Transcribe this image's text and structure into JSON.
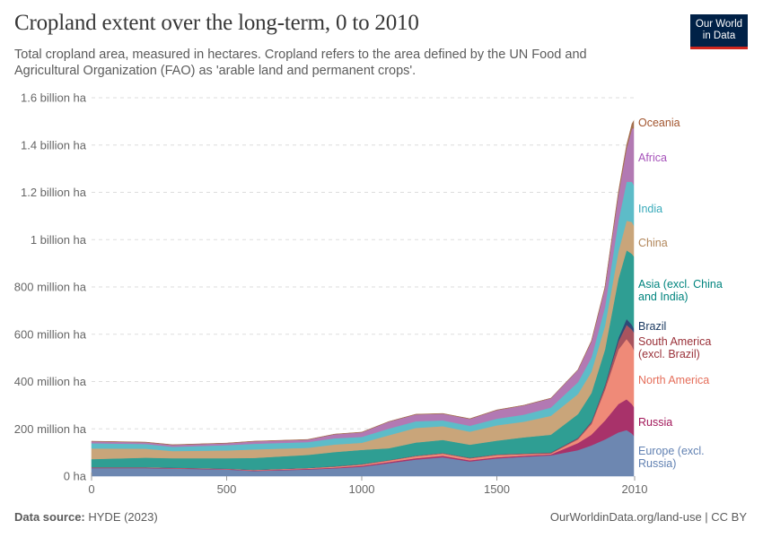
{
  "header": {
    "title": "Cropland extent over the long-term, 0 to 2010",
    "subtitle": "Total cropland area, measured in hectares. Cropland refers to the area defined by the UN Food and Agricultural Organization (FAO) as 'arable land and permanent crops'.",
    "logo_line1": "Our World",
    "logo_line2": "in Data"
  },
  "footer": {
    "source_label": "Data source:",
    "source_value": "HYDE (2023)",
    "link": "OurWorldinData.org/land-use | CC BY"
  },
  "chart_data": {
    "type": "area",
    "stacked": true,
    "title": "Cropland extent over the long-term, 0 to 2010",
    "xlabel": "",
    "ylabel": "",
    "unit": "million ha",
    "xlim": [
      0,
      2010
    ],
    "ylim": [
      0,
      1600
    ],
    "grid": true,
    "legend": "right",
    "x_ticks": [
      {
        "value": 0,
        "label": "0"
      },
      {
        "value": 500,
        "label": "500"
      },
      {
        "value": 1000,
        "label": "1000"
      },
      {
        "value": 1500,
        "label": "1500"
      },
      {
        "value": 2010,
        "label": "2010"
      }
    ],
    "y_ticks": [
      {
        "value": 0,
        "label": "0 ha"
      },
      {
        "value": 200,
        "label": "200 million ha"
      },
      {
        "value": 400,
        "label": "400 million ha"
      },
      {
        "value": 600,
        "label": "600 million ha"
      },
      {
        "value": 800,
        "label": "800 million ha"
      },
      {
        "value": 1000,
        "label": "1 billion ha"
      },
      {
        "value": 1200,
        "label": "1.2 billion ha"
      },
      {
        "value": 1400,
        "label": "1.4 billion ha"
      },
      {
        "value": 1600,
        "label": "1.6 billion ha"
      }
    ],
    "x": [
      0,
      200,
      300,
      500,
      600,
      800,
      900,
      1000,
      1100,
      1200,
      1300,
      1400,
      1500,
      1600,
      1700,
      1800,
      1850,
      1900,
      1950,
      1980,
      2000,
      2010
    ],
    "series": [
      {
        "name": "Europe (excl. Russia)",
        "label": [
          "Europe (excl.",
          "Russia)"
        ],
        "color": "#6d87b1",
        "label_color": "#6181b2",
        "values": [
          34,
          34,
          32,
          28,
          22,
          28,
          33,
          40,
          55,
          70,
          80,
          62,
          75,
          82,
          88,
          110,
          130,
          155,
          185,
          195,
          180,
          167
        ]
      },
      {
        "name": "Russia",
        "label": [
          "Russia"
        ],
        "color": "#a8326a",
        "label_color": "#a2175a",
        "values": [
          2,
          2,
          2,
          2,
          2,
          3,
          3,
          4,
          5,
          6,
          6,
          5,
          5,
          5,
          4,
          30,
          45,
          80,
          120,
          130,
          125,
          121
        ]
      },
      {
        "name": "North America",
        "label": [
          "North America"
        ],
        "color": "#ef8a78",
        "label_color": "#e56e5a",
        "values": [
          1,
          1,
          1,
          1,
          2,
          3,
          4,
          5,
          6,
          8,
          9,
          8,
          9,
          6,
          4,
          15,
          45,
          130,
          230,
          255,
          245,
          239
        ]
      },
      {
        "name": "South America (excl. Brazil)",
        "label": [
          "South America",
          "(excl. Brazil)"
        ],
        "color": "#a8545e",
        "label_color": "#9a3139",
        "values": [
          1,
          1,
          1,
          1,
          1,
          1,
          2,
          2,
          2,
          3,
          3,
          3,
          3,
          3,
          3,
          5,
          8,
          15,
          35,
          60,
          70,
          76
        ]
      },
      {
        "name": "Brazil",
        "label": [
          "Brazil"
        ],
        "color": "#2e4b78",
        "label_color": "#18375f",
        "values": [
          0,
          0,
          0,
          0,
          0,
          0,
          0,
          0,
          0,
          0,
          0,
          0,
          0,
          0,
          1,
          2,
          3,
          5,
          15,
          25,
          20,
          15
        ]
      },
      {
        "name": "Asia (excl. China and India)",
        "label": [
          "Asia (excl. China",
          "and India)"
        ],
        "color": "#2f9e93",
        "label_color": "#00847e",
        "values": [
          34,
          40,
          40,
          44,
          50,
          55,
          60,
          60,
          50,
          55,
          55,
          55,
          58,
          68,
          75,
          100,
          120,
          150,
          250,
          290,
          300,
          307
        ]
      },
      {
        "name": "China",
        "label": [
          "China"
        ],
        "color": "#c9a57a",
        "label_color": "#b1865a",
        "values": [
          45,
          38,
          30,
          33,
          36,
          30,
          32,
          30,
          55,
          62,
          58,
          55,
          65,
          66,
          80,
          85,
          90,
          100,
          115,
          125,
          135,
          129
        ]
      },
      {
        "name": "India",
        "label": [
          "India"
        ],
        "color": "#5dbcc8",
        "label_color": "#38aaba",
        "values": [
          22,
          20,
          18,
          22,
          24,
          24,
          26,
          25,
          28,
          28,
          25,
          25,
          28,
          30,
          35,
          50,
          60,
          80,
          130,
          165,
          170,
          171
        ]
      },
      {
        "name": "Africa",
        "label": [
          "Africa"
        ],
        "color": "#b279b3",
        "label_color": "#a652ba",
        "values": [
          8,
          7,
          8,
          8,
          10,
          10,
          17,
          19,
          29,
          29,
          28,
          29,
          36,
          39,
          39,
          52,
          68,
          80,
          110,
          140,
          225,
          246
        ]
      },
      {
        "name": "Oceania",
        "label": [
          "Oceania"
        ],
        "color": "#a5704e",
        "label_color": "#a2552e",
        "values": [
          1,
          1,
          1,
          1,
          1,
          1,
          1,
          1,
          1,
          1,
          1,
          1,
          1,
          1,
          1,
          1,
          3,
          5,
          12,
          15,
          20,
          38
        ]
      }
    ]
  }
}
